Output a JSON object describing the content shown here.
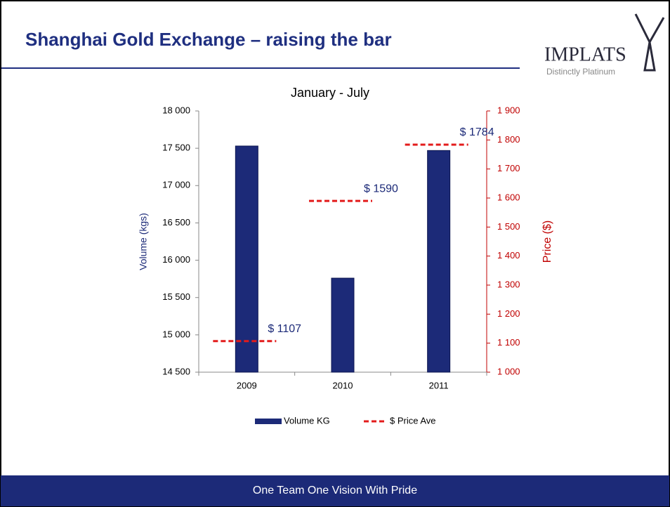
{
  "header": {
    "title": "Shanghai Gold Exchange – raising the bar"
  },
  "logo": {
    "name": "IMPLATS",
    "tagline": "Distinctly Platinum"
  },
  "footer": {
    "text": "One Team One Vision With Pride"
  },
  "chart_data": {
    "type": "bar",
    "title": "January - July",
    "y_label": "Volume (kgs)",
    "y2_label": "Price ($)",
    "categories": [
      "2009",
      "2010",
      "2011"
    ],
    "series": [
      {
        "name": "Volume KG",
        "color": "#1c2a78",
        "values": [
          17530,
          15760,
          17470
        ]
      },
      {
        "name": "$ Price Ave",
        "color": "#e31b1b",
        "axis": "y2",
        "line_style": "dashed",
        "values": [
          1107,
          1590,
          1784
        ],
        "value_labels": [
          "$ 1107",
          "$ 1590",
          "$ 1784"
        ]
      }
    ],
    "ylim": [
      14500,
      18000
    ],
    "yticks": [
      {
        "value": 14500,
        "label": "14 500"
      },
      {
        "value": 15000,
        "label": "15 000"
      },
      {
        "value": 15500,
        "label": "15 500"
      },
      {
        "value": 16000,
        "label": "16 000"
      },
      {
        "value": 16500,
        "label": "16 500"
      },
      {
        "value": 17000,
        "label": "17 000"
      },
      {
        "value": 17500,
        "label": "17 500"
      },
      {
        "value": 18000,
        "label": "18 000"
      }
    ],
    "y2lim": [
      1000,
      1900
    ],
    "y2ticks": [
      {
        "value": 1000,
        "label": "1 000"
      },
      {
        "value": 1100,
        "label": "1 100"
      },
      {
        "value": 1200,
        "label": "1 200"
      },
      {
        "value": 1300,
        "label": "1 300"
      },
      {
        "value": 1400,
        "label": "1 400"
      },
      {
        "value": 1500,
        "label": "1 500"
      },
      {
        "value": 1600,
        "label": "1 600"
      },
      {
        "value": 1700,
        "label": "1 700"
      },
      {
        "value": 1800,
        "label": "1 800"
      },
      {
        "value": 1900,
        "label": "1 900"
      }
    ],
    "legend": "bottom"
  }
}
